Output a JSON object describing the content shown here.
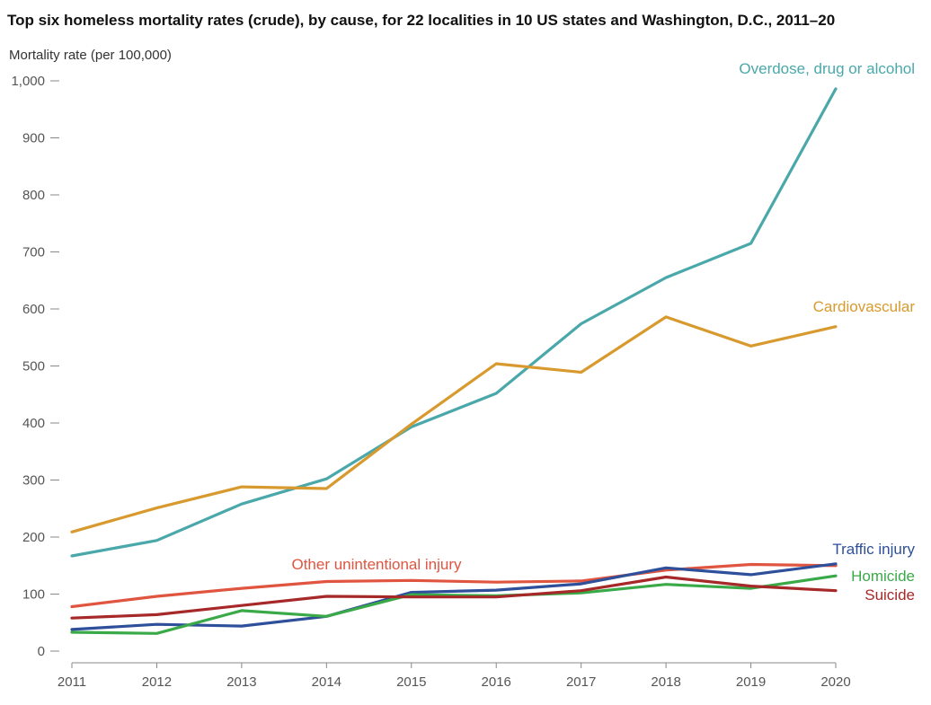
{
  "chart_data": {
    "type": "line",
    "title": "Top six homeless mortality rates (crude), by cause, for 22 localities in 10 US states and Washington, D.C., 2011–20",
    "ylabel": "Mortality rate (per 100,000)",
    "xlabel": "",
    "ylim": [
      0,
      1000
    ],
    "y_ticks": [
      0,
      100,
      200,
      300,
      400,
      500,
      600,
      700,
      800,
      900,
      1000
    ],
    "y_tick_labels": [
      "0",
      "100",
      "200",
      "300",
      "400",
      "500",
      "600",
      "700",
      "800",
      "900",
      "1,000"
    ],
    "x": [
      "2011",
      "2012",
      "2013",
      "2014",
      "2015",
      "2016",
      "2017",
      "2018",
      "2019",
      "2020"
    ],
    "grid": false,
    "legend": "direct labels at line ends",
    "series": [
      {
        "name": "Overdose, drug or alcohol",
        "color": "#4aa8aa",
        "values": [
          167,
          194,
          258,
          302,
          393,
          452,
          574,
          655,
          715,
          986
        ]
      },
      {
        "name": "Cardiovascular",
        "color": "#d89a2e",
        "values": [
          209,
          251,
          288,
          285,
          398,
          504,
          489,
          586,
          535,
          569
        ]
      },
      {
        "name": "Other unintentional injury",
        "color": "#e05540",
        "values": [
          78,
          96,
          110,
          122,
          124,
          121,
          123,
          142,
          152,
          150
        ]
      },
      {
        "name": "Traffic injury",
        "color": "#2e4f9a",
        "values": [
          38,
          47,
          44,
          61,
          103,
          107,
          118,
          146,
          134,
          153
        ]
      },
      {
        "name": "Homicide",
        "color": "#3aaa48",
        "values": [
          33,
          31,
          71,
          61,
          99,
          97,
          102,
          117,
          110,
          132
        ]
      },
      {
        "name": "Suicide",
        "color": "#a62828",
        "values": [
          58,
          64,
          80,
          96,
          95,
          95,
          106,
          130,
          114,
          106
        ]
      }
    ]
  }
}
